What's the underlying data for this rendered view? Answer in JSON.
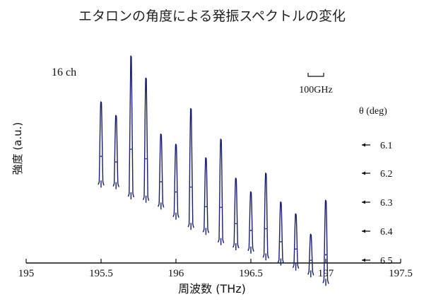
{
  "chart_data": {
    "type": "line",
    "title": "エタロンの角度による発振スペクトルの変化",
    "xlabel": "周波数 (THz)",
    "ylabel": "強度 (a.u.)",
    "xlim": [
      195,
      197.5
    ],
    "x_ticks": [
      "195",
      "195.5",
      "196",
      "196.5",
      "197",
      "197.5"
    ],
    "grid": false,
    "annotations": {
      "channels": "16 ch",
      "scale_bar": "100GHz",
      "theta_header": "θ (deg)"
    },
    "theta_levels": [
      {
        "label": "6.1"
      },
      {
        "label": "6.2"
      },
      {
        "label": "6.3"
      },
      {
        "label": "6.4"
      },
      {
        "label": "6.5"
      }
    ],
    "peaks": [
      {
        "freq": 195.5,
        "base": 0.47,
        "top": 0.95
      },
      {
        "freq": 195.6,
        "base": 0.46,
        "top": 0.87
      },
      {
        "freq": 195.7,
        "base": 0.4,
        "top": 1.22
      },
      {
        "freq": 195.8,
        "base": 0.38,
        "top": 1.09
      },
      {
        "freq": 195.9,
        "base": 0.34,
        "top": 0.76
      },
      {
        "freq": 196.0,
        "base": 0.28,
        "top": 0.7
      },
      {
        "freq": 196.1,
        "base": 0.22,
        "top": 0.91
      },
      {
        "freq": 196.2,
        "base": 0.19,
        "top": 0.62
      },
      {
        "freq": 196.3,
        "base": 0.13,
        "top": 0.73
      },
      {
        "freq": 196.4,
        "base": 0.1,
        "top": 0.5
      },
      {
        "freq": 196.5,
        "base": 0.08,
        "top": 0.42
      },
      {
        "freq": 196.6,
        "base": 0.04,
        "top": 0.53
      },
      {
        "freq": 196.7,
        "base": 0.01,
        "top": 0.36
      },
      {
        "freq": 196.8,
        "base": -0.02,
        "top": 0.29
      },
      {
        "freq": 196.9,
        "base": -0.06,
        "top": 0.17
      },
      {
        "freq": 197.0,
        "base": -0.11,
        "top": 0.37
      }
    ]
  }
}
